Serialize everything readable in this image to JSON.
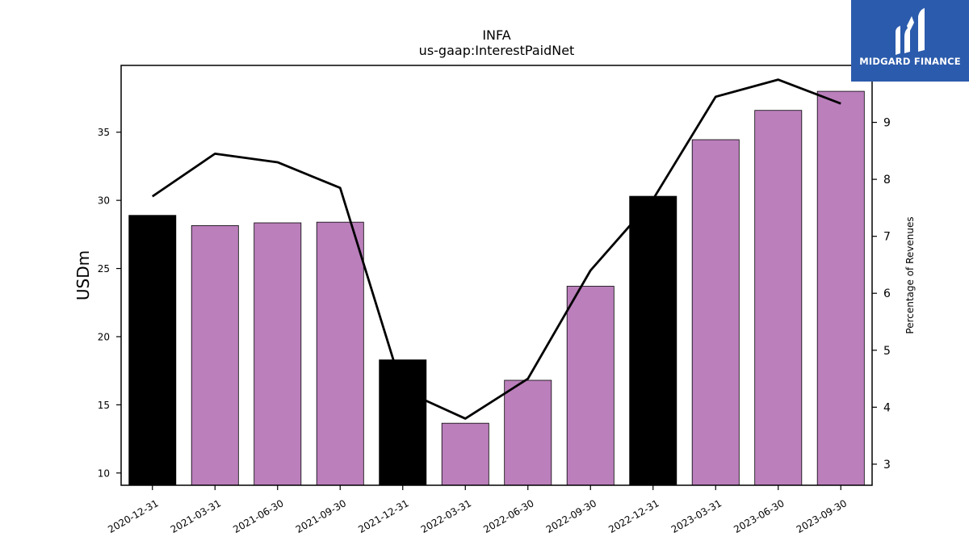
{
  "chart_data": {
    "type": "bar",
    "title": "INFA",
    "subtitle": "us-gaap:InterestPaidNet",
    "ylabel": "USDm",
    "y2label": "Percentage of Revenues",
    "categories": [
      "2020-12-31",
      "2021-03-31",
      "2021-06-30",
      "2021-09-30",
      "2021-12-31",
      "2022-03-31",
      "2022-06-30",
      "2022-09-30",
      "2022-12-31",
      "2023-03-31",
      "2023-06-30",
      "2023-09-30"
    ],
    "series": [
      {
        "values": [
          28.9,
          28.15,
          28.35,
          28.4,
          18.3,
          13.65,
          16.8,
          23.7,
          30.3,
          34.45,
          36.6,
          38.0
        ],
        "colors": [
          "#000000",
          "#bb7fbc",
          "#bb7fbc",
          "#bb7fbc",
          "#000000",
          "#bb7fbc",
          "#bb7fbc",
          "#bb7fbc",
          "#000000",
          "#bb7fbc",
          "#bb7fbc",
          "#bb7fbc"
        ]
      },
      {
        "axis": "right",
        "type": "line",
        "color": "#000000",
        "values": [
          7.7,
          8.45,
          8.3,
          7.85,
          4.3,
          3.8,
          4.5,
          6.4,
          7.65,
          9.45,
          9.75,
          9.33
        ]
      }
    ],
    "ylim": [
      9.1,
      39.9
    ],
    "yticks": [
      10,
      15,
      20,
      25,
      30,
      35
    ],
    "y2lim": [
      2.63,
      10.0
    ],
    "y2ticks": [
      3,
      4,
      5,
      6,
      7,
      8,
      9
    ],
    "grid": false,
    "legend": "none"
  },
  "logo": {
    "text": "MIDGARD FINANCE",
    "background": "#2b5bac"
  }
}
